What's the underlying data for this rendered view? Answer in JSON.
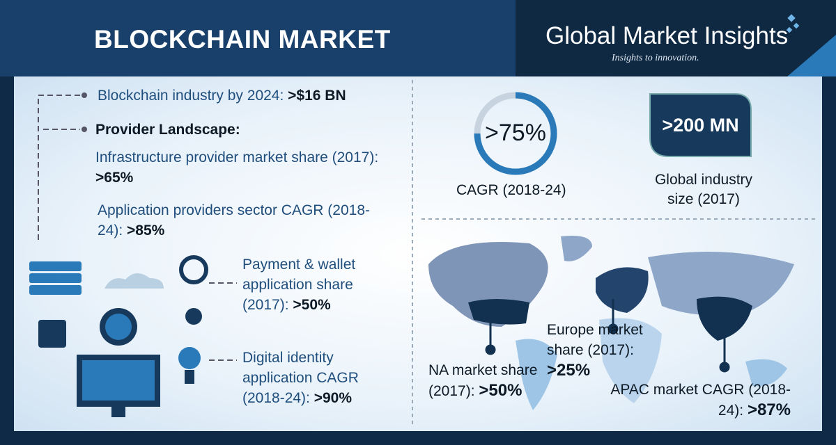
{
  "header": {
    "title": "BLOCKCHAIN MARKET",
    "brand": "Global Market Insights",
    "tagline": "Insights to innovation."
  },
  "left": {
    "industry": {
      "label": "Blockchain industry by 2024:",
      "value": ">$16 BN"
    },
    "provider_heading": "Provider Landscape:",
    "items": [
      {
        "label": "Infrastructure provider market share (2017):",
        "value": ">65%"
      },
      {
        "label": "Application providers sector CAGR (2018-24):",
        "value": ">85%"
      },
      {
        "label": "Payment & wallet application share (2017):",
        "value": ">50%"
      },
      {
        "label": "Digital identity application CAGR (2018-24):",
        "value": ">90%"
      }
    ]
  },
  "right": {
    "cagr": {
      "value": ">75%",
      "label": "CAGR (2018-24)"
    },
    "size": {
      "value": ">200 MN",
      "label": "Global industry size (2017)"
    },
    "regions": [
      {
        "label": "NA market share (2017):",
        "value": ">50%"
      },
      {
        "label": "Europe market share (2017):",
        "value": ">25%"
      },
      {
        "label": "APAC market CAGR (2018-24):",
        "value": ">87%"
      }
    ]
  }
}
